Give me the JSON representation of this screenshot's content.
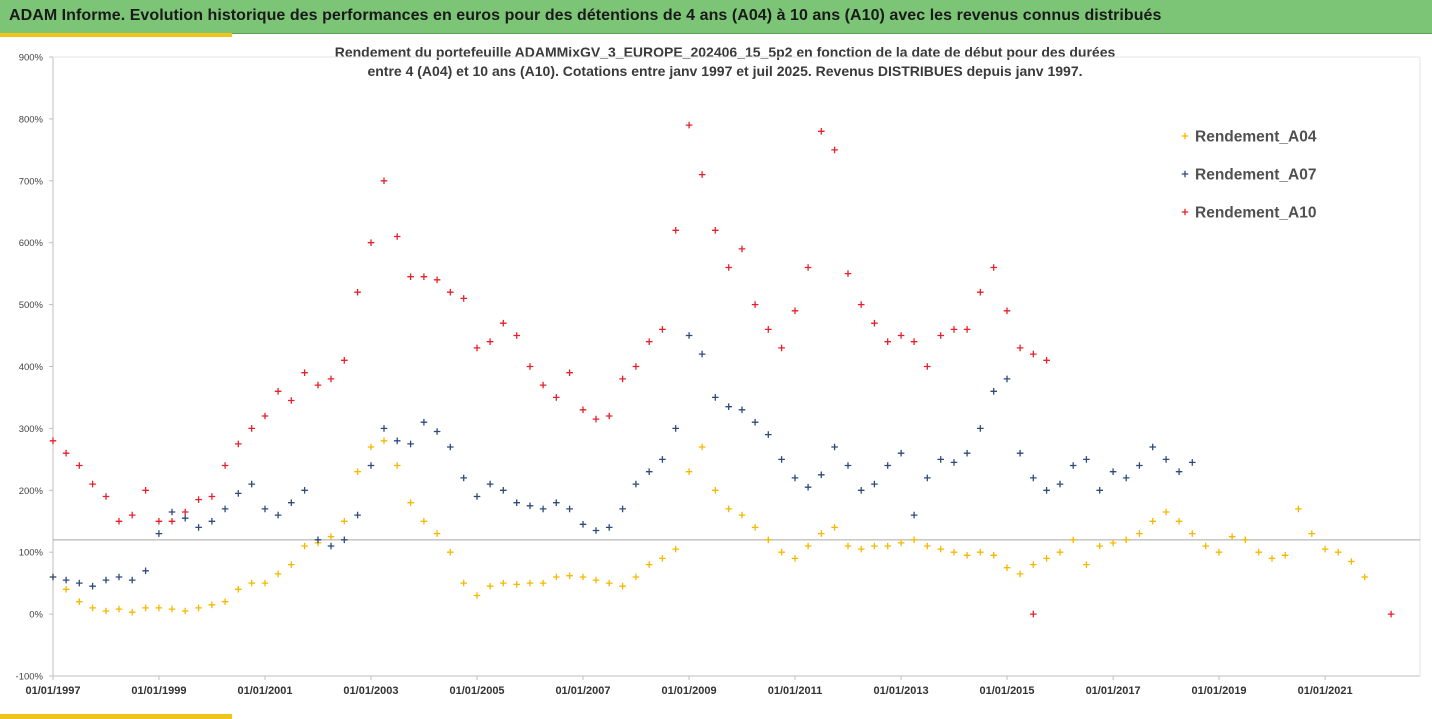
{
  "header": {
    "title": "ADAM Informe. Evolution historique des performances en euros pour des détentions de 4 ans (A04) à 10 ans (A10) avec les revenus connus distribués"
  },
  "colors": {
    "header_bg": "#7cc576",
    "accent": "#f0c419",
    "A04": "#f5b800",
    "A07": "#2f4b7c",
    "A10": "#e8202a"
  },
  "chart_data": {
    "type": "scatter",
    "title_lines": [
      "Rendement du portefeuille ADAMMixGV_3_EUROPE_202406_15_5p2  en fonction de la date de début pour des durées",
      "entre 4 (A04) et 10 ans (A10). Cotations entre janv 1997 et juil 2025. Revenus DISTRIBUES depuis janv 1997."
    ],
    "x_ticks": [
      "01/01/1997",
      "01/01/1999",
      "01/01/2001",
      "01/01/2003",
      "01/01/2005",
      "01/01/2007",
      "01/01/2009",
      "01/01/2011",
      "01/01/2013",
      "01/01/2015",
      "01/01/2017",
      "01/01/2019",
      "01/01/2021"
    ],
    "xlim": [
      "1997-01-01",
      "2022-06-01"
    ],
    "y_ticks": [
      "-100%",
      "0%",
      "100%",
      "200%",
      "300%",
      "400%",
      "500%",
      "600%",
      "700%",
      "800%",
      "900%"
    ],
    "ylim": [
      -100,
      900
    ],
    "reference_line_y": 120,
    "grid": false,
    "legend_position": "right",
    "marker": "+",
    "series": [
      {
        "name": "Rendement_A04",
        "points": [
          [
            "1997-01-01",
            60
          ],
          [
            "1997-04-01",
            40
          ],
          [
            "1997-07-01",
            20
          ],
          [
            "1997-10-01",
            10
          ],
          [
            "1998-01-01",
            5
          ],
          [
            "1998-04-01",
            8
          ],
          [
            "1998-07-01",
            3
          ],
          [
            "1998-10-01",
            10
          ],
          [
            "1999-01-01",
            10
          ],
          [
            "1999-04-01",
            8
          ],
          [
            "1999-07-01",
            5
          ],
          [
            "1999-10-01",
            10
          ],
          [
            "2000-01-01",
            15
          ],
          [
            "2000-04-01",
            20
          ],
          [
            "2000-07-01",
            40
          ],
          [
            "2000-10-01",
            50
          ],
          [
            "2001-01-01",
            50
          ],
          [
            "2001-04-01",
            65
          ],
          [
            "2001-07-01",
            80
          ],
          [
            "2001-10-01",
            110
          ],
          [
            "2002-01-01",
            115
          ],
          [
            "2002-04-01",
            125
          ],
          [
            "2002-07-01",
            150
          ],
          [
            "2002-10-01",
            230
          ],
          [
            "2003-01-01",
            270
          ],
          [
            "2003-04-01",
            280
          ],
          [
            "2003-07-01",
            240
          ],
          [
            "2003-10-01",
            180
          ],
          [
            "2004-01-01",
            150
          ],
          [
            "2004-04-01",
            130
          ],
          [
            "2004-07-01",
            100
          ],
          [
            "2004-10-01",
            50
          ],
          [
            "2005-01-01",
            30
          ],
          [
            "2005-04-01",
            45
          ],
          [
            "2005-07-01",
            50
          ],
          [
            "2005-10-01",
            48
          ],
          [
            "2006-01-01",
            50
          ],
          [
            "2006-04-01",
            50
          ],
          [
            "2006-07-01",
            60
          ],
          [
            "2006-10-01",
            62
          ],
          [
            "2007-01-01",
            60
          ],
          [
            "2007-04-01",
            55
          ],
          [
            "2007-07-01",
            50
          ],
          [
            "2007-10-01",
            45
          ],
          [
            "2008-01-01",
            60
          ],
          [
            "2008-04-01",
            80
          ],
          [
            "2008-07-01",
            90
          ],
          [
            "2008-10-01",
            105
          ],
          [
            "2009-01-01",
            230
          ],
          [
            "2009-04-01",
            270
          ],
          [
            "2009-07-01",
            200
          ],
          [
            "2009-10-01",
            170
          ],
          [
            "2010-01-01",
            160
          ],
          [
            "2010-04-01",
            140
          ],
          [
            "2010-07-01",
            120
          ],
          [
            "2010-10-01",
            100
          ],
          [
            "2011-01-01",
            90
          ],
          [
            "2011-04-01",
            110
          ],
          [
            "2011-07-01",
            130
          ],
          [
            "2011-10-01",
            140
          ],
          [
            "2012-01-01",
            110
          ],
          [
            "2012-04-01",
            105
          ],
          [
            "2012-07-01",
            110
          ],
          [
            "2012-10-01",
            110
          ],
          [
            "2013-01-01",
            115
          ],
          [
            "2013-04-01",
            120
          ],
          [
            "2013-07-01",
            110
          ],
          [
            "2013-10-01",
            105
          ],
          [
            "2014-01-01",
            100
          ],
          [
            "2014-04-01",
            95
          ],
          [
            "2014-07-01",
            100
          ],
          [
            "2014-10-01",
            95
          ],
          [
            "2015-01-01",
            75
          ],
          [
            "2015-04-01",
            65
          ],
          [
            "2015-07-01",
            80
          ],
          [
            "2015-10-01",
            90
          ],
          [
            "2016-01-01",
            100
          ],
          [
            "2016-04-01",
            120
          ],
          [
            "2016-07-01",
            80
          ],
          [
            "2016-10-01",
            110
          ],
          [
            "2017-01-01",
            115
          ],
          [
            "2017-04-01",
            120
          ],
          [
            "2017-07-01",
            130
          ],
          [
            "2017-10-01",
            150
          ],
          [
            "2018-01-01",
            165
          ],
          [
            "2018-04-01",
            150
          ],
          [
            "2018-07-01",
            130
          ],
          [
            "2018-10-01",
            110
          ],
          [
            "2019-01-01",
            100
          ],
          [
            "2019-04-01",
            125
          ],
          [
            "2019-07-01",
            120
          ],
          [
            "2019-10-01",
            100
          ],
          [
            "2020-01-01",
            90
          ],
          [
            "2020-04-01",
            95
          ],
          [
            "2020-07-01",
            170
          ],
          [
            "2020-10-01",
            130
          ],
          [
            "2021-01-01",
            105
          ],
          [
            "2021-04-01",
            100
          ],
          [
            "2021-07-01",
            85
          ],
          [
            "2021-10-01",
            60
          ]
        ]
      },
      {
        "name": "Rendement_A07",
        "points": [
          [
            "1997-01-01",
            60
          ],
          [
            "1997-04-01",
            55
          ],
          [
            "1997-07-01",
            50
          ],
          [
            "1997-10-01",
            45
          ],
          [
            "1998-01-01",
            55
          ],
          [
            "1998-04-01",
            60
          ],
          [
            "1998-07-01",
            55
          ],
          [
            "1998-10-01",
            70
          ],
          [
            "1999-01-01",
            130
          ],
          [
            "1999-04-01",
            165
          ],
          [
            "1999-07-01",
            155
          ],
          [
            "1999-10-01",
            140
          ],
          [
            "2000-01-01",
            150
          ],
          [
            "2000-04-01",
            170
          ],
          [
            "2000-07-01",
            195
          ],
          [
            "2000-10-01",
            210
          ],
          [
            "2001-01-01",
            170
          ],
          [
            "2001-04-01",
            160
          ],
          [
            "2001-07-01",
            180
          ],
          [
            "2001-10-01",
            200
          ],
          [
            "2002-01-01",
            120
          ],
          [
            "2002-04-01",
            110
          ],
          [
            "2002-07-01",
            120
          ],
          [
            "2002-10-01",
            160
          ],
          [
            "2003-01-01",
            240
          ],
          [
            "2003-04-01",
            300
          ],
          [
            "2003-07-01",
            280
          ],
          [
            "2003-10-01",
            275
          ],
          [
            "2004-01-01",
            310
          ],
          [
            "2004-04-01",
            295
          ],
          [
            "2004-07-01",
            270
          ],
          [
            "2004-10-01",
            220
          ],
          [
            "2005-01-01",
            190
          ],
          [
            "2005-04-01",
            210
          ],
          [
            "2005-07-01",
            200
          ],
          [
            "2005-10-01",
            180
          ],
          [
            "2006-01-01",
            175
          ],
          [
            "2006-04-01",
            170
          ],
          [
            "2006-07-01",
            180
          ],
          [
            "2006-10-01",
            170
          ],
          [
            "2007-01-01",
            145
          ],
          [
            "2007-04-01",
            135
          ],
          [
            "2007-07-01",
            140
          ],
          [
            "2007-10-01",
            170
          ],
          [
            "2008-01-01",
            210
          ],
          [
            "2008-04-01",
            230
          ],
          [
            "2008-07-01",
            250
          ],
          [
            "2008-10-01",
            300
          ],
          [
            "2009-01-01",
            450
          ],
          [
            "2009-04-01",
            420
          ],
          [
            "2009-07-01",
            350
          ],
          [
            "2009-10-01",
            335
          ],
          [
            "2010-01-01",
            330
          ],
          [
            "2010-04-01",
            310
          ],
          [
            "2010-07-01",
            290
          ],
          [
            "2010-10-01",
            250
          ],
          [
            "2011-01-01",
            220
          ],
          [
            "2011-04-01",
            205
          ],
          [
            "2011-07-01",
            225
          ],
          [
            "2011-10-01",
            270
          ],
          [
            "2012-01-01",
            240
          ],
          [
            "2012-04-01",
            200
          ],
          [
            "2012-07-01",
            210
          ],
          [
            "2012-10-01",
            240
          ],
          [
            "2013-01-01",
            260
          ],
          [
            "2013-04-01",
            160
          ],
          [
            "2013-07-01",
            220
          ],
          [
            "2013-10-01",
            250
          ],
          [
            "2014-01-01",
            245
          ],
          [
            "2014-04-01",
            260
          ],
          [
            "2014-07-01",
            300
          ],
          [
            "2014-10-01",
            360
          ],
          [
            "2015-01-01",
            380
          ],
          [
            "2015-04-01",
            260
          ],
          [
            "2015-07-01",
            220
          ],
          [
            "2015-10-01",
            200
          ],
          [
            "2016-01-01",
            210
          ],
          [
            "2016-04-01",
            240
          ],
          [
            "2016-07-01",
            250
          ],
          [
            "2016-10-01",
            200
          ],
          [
            "2017-01-01",
            230
          ],
          [
            "2017-04-01",
            220
          ],
          [
            "2017-07-01",
            240
          ],
          [
            "2017-10-01",
            270
          ],
          [
            "2018-01-01",
            250
          ],
          [
            "2018-04-01",
            230
          ],
          [
            "2018-07-01",
            245
          ]
        ]
      },
      {
        "name": "Rendement_A10",
        "points": [
          [
            "1997-01-01",
            280
          ],
          [
            "1997-04-01",
            260
          ],
          [
            "1997-07-01",
            240
          ],
          [
            "1997-10-01",
            210
          ],
          [
            "1998-01-01",
            190
          ],
          [
            "1998-04-01",
            150
          ],
          [
            "1998-07-01",
            160
          ],
          [
            "1998-10-01",
            200
          ],
          [
            "1999-01-01",
            150
          ],
          [
            "1999-04-01",
            150
          ],
          [
            "1999-07-01",
            165
          ],
          [
            "1999-10-01",
            185
          ],
          [
            "2000-01-01",
            190
          ],
          [
            "2000-04-01",
            240
          ],
          [
            "2000-07-01",
            275
          ],
          [
            "2000-10-01",
            300
          ],
          [
            "2001-01-01",
            320
          ],
          [
            "2001-04-01",
            360
          ],
          [
            "2001-07-01",
            345
          ],
          [
            "2001-10-01",
            390
          ],
          [
            "2002-01-01",
            370
          ],
          [
            "2002-04-01",
            380
          ],
          [
            "2002-07-01",
            410
          ],
          [
            "2002-10-01",
            520
          ],
          [
            "2003-01-01",
            600
          ],
          [
            "2003-04-01",
            700
          ],
          [
            "2003-07-01",
            610
          ],
          [
            "2003-10-01",
            545
          ],
          [
            "2004-01-01",
            545
          ],
          [
            "2004-04-01",
            540
          ],
          [
            "2004-07-01",
            520
          ],
          [
            "2004-10-01",
            510
          ],
          [
            "2005-01-01",
            430
          ],
          [
            "2005-04-01",
            440
          ],
          [
            "2005-07-01",
            470
          ],
          [
            "2005-10-01",
            450
          ],
          [
            "2006-01-01",
            400
          ],
          [
            "2006-04-01",
            370
          ],
          [
            "2006-07-01",
            350
          ],
          [
            "2006-10-01",
            390
          ],
          [
            "2007-01-01",
            330
          ],
          [
            "2007-04-01",
            315
          ],
          [
            "2007-07-01",
            320
          ],
          [
            "2007-10-01",
            380
          ],
          [
            "2008-01-01",
            400
          ],
          [
            "2008-04-01",
            440
          ],
          [
            "2008-07-01",
            460
          ],
          [
            "2008-10-01",
            620
          ],
          [
            "2009-01-01",
            790
          ],
          [
            "2009-04-01",
            710
          ],
          [
            "2009-07-01",
            620
          ],
          [
            "2009-10-01",
            560
          ],
          [
            "2010-01-01",
            590
          ],
          [
            "2010-04-01",
            500
          ],
          [
            "2010-07-01",
            460
          ],
          [
            "2010-10-01",
            430
          ],
          [
            "2011-01-01",
            490
          ],
          [
            "2011-04-01",
            560
          ],
          [
            "2011-07-01",
            780
          ],
          [
            "2011-10-01",
            750
          ],
          [
            "2012-01-01",
            550
          ],
          [
            "2012-04-01",
            500
          ],
          [
            "2012-07-01",
            470
          ],
          [
            "2012-10-01",
            440
          ],
          [
            "2013-01-01",
            450
          ],
          [
            "2013-04-01",
            440
          ],
          [
            "2013-07-01",
            400
          ],
          [
            "2013-10-01",
            450
          ],
          [
            "2014-01-01",
            460
          ],
          [
            "2014-04-01",
            460
          ],
          [
            "2014-07-01",
            520
          ],
          [
            "2014-10-01",
            560
          ],
          [
            "2015-01-01",
            490
          ],
          [
            "2015-04-01",
            430
          ],
          [
            "2015-07-01",
            420
          ],
          [
            "2015-10-01",
            410
          ],
          [
            "2015-07-01",
            0
          ],
          [
            "2022-04-01",
            0
          ]
        ]
      }
    ]
  }
}
